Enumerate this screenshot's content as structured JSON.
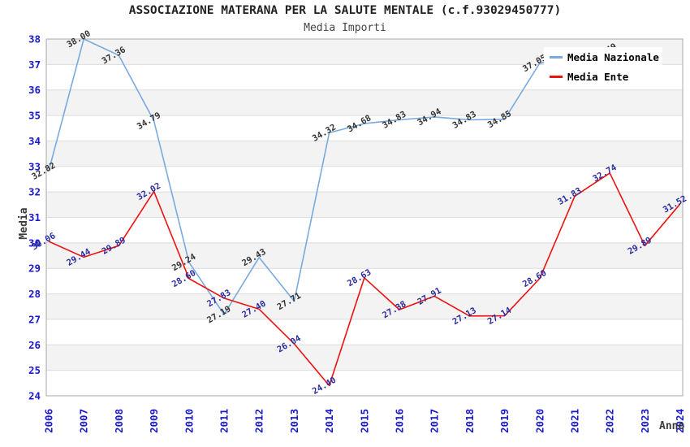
{
  "chart_data": {
    "type": "line",
    "title": "ASSOCIAZIONE MATERANA PER LA SALUTE MENTALE (c.f.93029450777)",
    "subtitle": "Media Importi",
    "xlabel": "Anno",
    "ylabel": "Media",
    "ylim": [
      24,
      38
    ],
    "y_ticks": [
      24,
      25,
      26,
      27,
      28,
      29,
      30,
      31,
      32,
      33,
      34,
      35,
      36,
      37,
      38
    ],
    "grid": "horizontal-gridlines-with-alternating-bands",
    "legend_position": "top-right-inside",
    "categories": [
      "2006",
      "2007",
      "2008",
      "2009",
      "2010",
      "2011",
      "2012",
      "2013",
      "2014",
      "2015",
      "2016",
      "2017",
      "2018",
      "2019",
      "2020",
      "2021",
      "2022",
      "2023",
      "2024"
    ],
    "series": [
      {
        "name": "Media Nazionale",
        "color": "#79aade",
        "label_color": "#333333",
        "values": [
          32.82,
          38.0,
          37.36,
          34.79,
          29.24,
          27.19,
          29.43,
          27.71,
          34.32,
          34.68,
          34.83,
          34.94,
          34.83,
          34.85,
          37.05,
          null,
          37.49,
          null,
          null
        ]
      },
      {
        "name": "Media Ente",
        "color": "#ee1111",
        "label_color": "#2a2a9e",
        "values": [
          30.06,
          29.44,
          29.89,
          32.02,
          28.6,
          27.83,
          27.4,
          26.04,
          24.4,
          28.63,
          27.38,
          27.91,
          27.13,
          27.14,
          28.6,
          31.83,
          32.74,
          29.89,
          31.52
        ]
      }
    ],
    "colors": {
      "tick_label": "#1a1acd",
      "band_fill": "#f3f3f3",
      "gridline": "#dcdcdc",
      "plot_border": "#aaaaaa",
      "axis_title": "#3c3c3c"
    }
  },
  "legend": {
    "items": [
      {
        "label": "Media Nazionale",
        "color": "#79aade"
      },
      {
        "label": "Media Ente",
        "color": "#ee1111"
      }
    ]
  }
}
